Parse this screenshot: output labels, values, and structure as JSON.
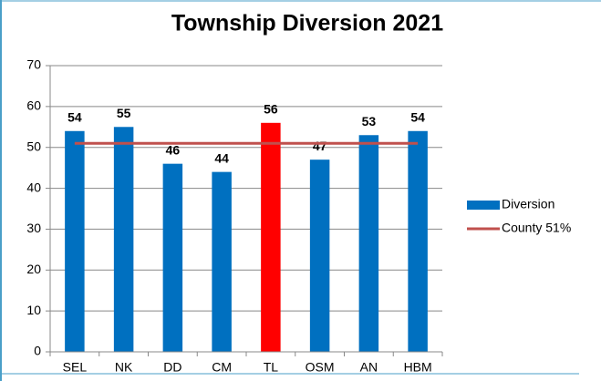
{
  "chart_data": {
    "type": "bar",
    "title": "Township Diversion 2021",
    "categories": [
      "SEL",
      "NK",
      "DD",
      "CM",
      "TL",
      "OSM",
      "AN",
      "HBM"
    ],
    "series": [
      {
        "name": "Diversion",
        "color": "#0070c0",
        "colors": [
          "#0070c0",
          "#0070c0",
          "#0070c0",
          "#0070c0",
          "#ff0000",
          "#0070c0",
          "#0070c0",
          "#0070c0"
        ],
        "values": [
          54,
          55,
          46,
          44,
          56,
          47,
          53,
          54
        ]
      },
      {
        "name": "County 51%",
        "type": "line",
        "color": "#c0504d",
        "values": [
          51,
          51,
          51,
          51,
          51,
          51,
          51,
          51
        ]
      }
    ],
    "ylim": [
      0,
      70
    ],
    "yticks": [
      0,
      10,
      20,
      30,
      40,
      50,
      60,
      70
    ],
    "grid": true,
    "legend": "right"
  }
}
